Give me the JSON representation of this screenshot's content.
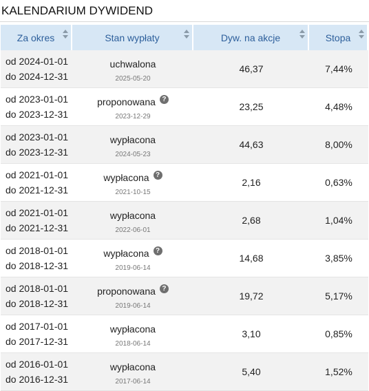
{
  "title": "KALENDARIUM DYWIDEND",
  "columns": [
    "Za okres",
    "Stan wypłaty",
    "Dyw. na akcje",
    "Stopa"
  ],
  "rows": [
    {
      "from": "od 2024-01-01",
      "to": "do 2024-12-31",
      "status": "uchwalona",
      "date": "2025-05-20",
      "help": false,
      "dividend": "46,37",
      "rate": "7,44%"
    },
    {
      "from": "od 2023-01-01",
      "to": "do 2023-12-31",
      "status": "proponowana",
      "date": "2023-12-29",
      "help": true,
      "dividend": "23,25",
      "rate": "4,48%"
    },
    {
      "from": "od 2023-01-01",
      "to": "do 2023-12-31",
      "status": "wypłacona",
      "date": "2024-05-23",
      "help": false,
      "dividend": "44,63",
      "rate": "8,00%"
    },
    {
      "from": "od 2021-01-01",
      "to": "do 2021-12-31",
      "status": "wypłacona",
      "date": "2021-10-15",
      "help": true,
      "dividend": "2,16",
      "rate": "0,63%"
    },
    {
      "from": "od 2021-01-01",
      "to": "do 2021-12-31",
      "status": "wypłacona",
      "date": "2022-06-01",
      "help": false,
      "dividend": "2,68",
      "rate": "1,04%"
    },
    {
      "from": "od 2018-01-01",
      "to": "do 2018-12-31",
      "status": "wypłacona",
      "date": "2019-06-14",
      "help": true,
      "dividend": "14,68",
      "rate": "3,85%"
    },
    {
      "from": "od 2018-01-01",
      "to": "do 2018-12-31",
      "status": "proponowana",
      "date": "2019-06-14",
      "help": true,
      "dividend": "19,72",
      "rate": "5,17%"
    },
    {
      "from": "od 2017-01-01",
      "to": "do 2017-12-31",
      "status": "wypłacona",
      "date": "2018-06-14",
      "help": false,
      "dividend": "3,10",
      "rate": "0,85%"
    },
    {
      "from": "od 2016-01-01",
      "to": "do 2016-12-31",
      "status": "wypłacona",
      "date": "2017-06-14",
      "help": false,
      "dividend": "5,40",
      "rate": "1,52%"
    }
  ],
  "help_icon_glyph": "?",
  "colors": {
    "header_bg": "#d7e7f5",
    "header_text": "#2d5f9b",
    "stripe": "#f2f2f2"
  }
}
